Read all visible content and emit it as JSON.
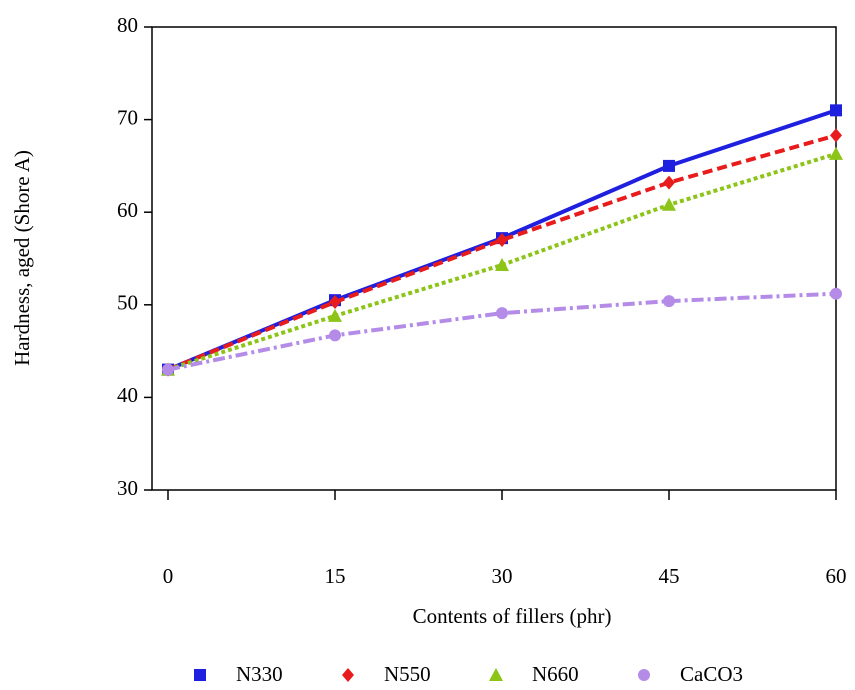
{
  "chart_data": {
    "type": "line",
    "xlabel": "Contents of fillers (phr)",
    "ylabel": "Hardness, aged (Shore A)",
    "x": [
      0,
      15,
      30,
      45,
      60
    ],
    "xlim": [
      0,
      60
    ],
    "xticks": [
      0,
      15,
      30,
      45,
      60
    ],
    "ylim": [
      30,
      80
    ],
    "yticks": [
      30,
      40,
      50,
      60,
      70,
      80
    ],
    "legend": "bottom",
    "series": [
      {
        "name": "N330",
        "color": "#1f1fe0",
        "marker": "square",
        "dash": "solid",
        "values": [
          43,
          50.5,
          57.2,
          65,
          71
        ]
      },
      {
        "name": "N550",
        "color": "#e81c1c",
        "marker": "diamond",
        "dash": "dashed",
        "values": [
          43,
          50.3,
          57,
          63.2,
          68.3
        ]
      },
      {
        "name": "N660",
        "color": "#8cc418",
        "marker": "triangle",
        "dash": "dotted",
        "values": [
          43,
          48.8,
          54.3,
          60.8,
          66.3
        ]
      },
      {
        "name": "CaCO3",
        "color": "#b48ce8",
        "marker": "circle",
        "dash": "dashdot",
        "values": [
          43,
          46.7,
          49.1,
          50.4,
          51.2
        ]
      }
    ]
  }
}
